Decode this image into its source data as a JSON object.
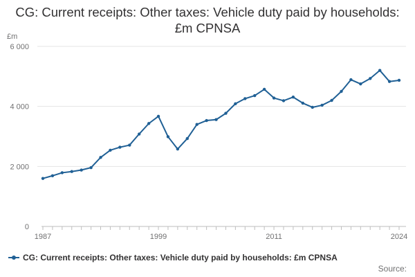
{
  "chart_data": {
    "type": "line",
    "title": "CG: Current receipts: Other taxes: Vehicle duty paid by households: £m CPNSA",
    "ylabel": "£m",
    "xlabel": "",
    "x": [
      1987,
      1988,
      1989,
      1990,
      1991,
      1992,
      1993,
      1994,
      1995,
      1996,
      1997,
      1998,
      1999,
      2000,
      2001,
      2002,
      2003,
      2004,
      2005,
      2006,
      2007,
      2008,
      2009,
      2010,
      2011,
      2012,
      2013,
      2014,
      2015,
      2016,
      2017,
      2018,
      2019,
      2020,
      2021,
      2022,
      2023,
      2024
    ],
    "series": [
      {
        "name": "CG: Current receipts: Other taxes: Vehicle duty paid by households: £m CPNSA",
        "color": "#206095",
        "values": [
          1600,
          1690,
          1790,
          1830,
          1880,
          1960,
          2300,
          2540,
          2640,
          2710,
          3080,
          3430,
          3670,
          2990,
          2580,
          2930,
          3400,
          3530,
          3560,
          3770,
          4090,
          4260,
          4360,
          4570,
          4280,
          4190,
          4310,
          4110,
          3970,
          4040,
          4200,
          4500,
          4890,
          4750,
          4930,
          5200,
          4830,
          4870
        ]
      }
    ],
    "ylim": [
      0,
      6000
    ],
    "yticks": [
      0,
      2000,
      4000,
      6000
    ],
    "ytick_labels": [
      "0",
      "2 000",
      "4 000",
      "6 000"
    ],
    "xticks": [
      1987,
      1999,
      2011,
      2024
    ],
    "xtick_labels": [
      "1987",
      "1999",
      "2011",
      "2024"
    ],
    "grid": true,
    "legend_position": "bottom"
  },
  "footer": {
    "source_label": "Source:"
  },
  "colors": {
    "series": "#206095",
    "grid": "#e5e5e5",
    "axis": "#bebebe",
    "text": "#323132",
    "muted": "#707071"
  }
}
